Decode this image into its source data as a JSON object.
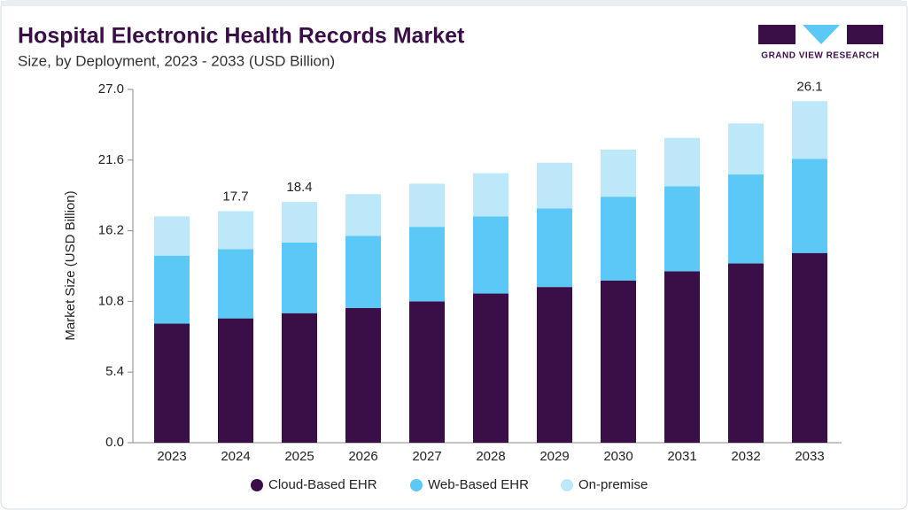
{
  "chart_data": {
    "type": "stacked_bar",
    "title": "Hospital Electronic Health Records Market",
    "subtitle": "Size, by Deployment, 2023 - 2033 (USD Billion)",
    "y_label": "Market Size (USD Billion)",
    "categories": [
      "2023",
      "2024",
      "2025",
      "2026",
      "2027",
      "2028",
      "2029",
      "2030",
      "2031",
      "2032",
      "2033"
    ],
    "series": [
      {
        "name": "Cloud-Based EHR",
        "color": "#3a0f47",
        "values": [
          9.1,
          9.5,
          9.9,
          10.3,
          10.8,
          11.4,
          11.9,
          12.4,
          13.1,
          13.7,
          14.5
        ]
      },
      {
        "name": "Web-Based EHR",
        "color": "#5bc8f5",
        "values": [
          5.2,
          5.3,
          5.4,
          5.5,
          5.7,
          5.9,
          6.0,
          6.4,
          6.5,
          6.8,
          7.2
        ]
      },
      {
        "name": "On-premise",
        "color": "#bde8f9",
        "values": [
          3.0,
          2.9,
          3.1,
          3.2,
          3.3,
          3.3,
          3.5,
          3.6,
          3.7,
          3.9,
          4.4
        ]
      }
    ],
    "annotations": [
      {
        "category": "2024",
        "value": 17.7
      },
      {
        "category": "2025",
        "value": 18.4
      },
      {
        "category": "2033",
        "value": 26.1
      }
    ],
    "ylim": [
      0,
      27
    ],
    "yticks": [
      {
        "value": 0,
        "label": "0.0"
      },
      5.4,
      10.8,
      16.2,
      21.6,
      {
        "value": 27,
        "label": "27.0"
      }
    ],
    "legend": "bottom"
  },
  "brand": {
    "name": "GRAND VIEW RESEARCH"
  }
}
